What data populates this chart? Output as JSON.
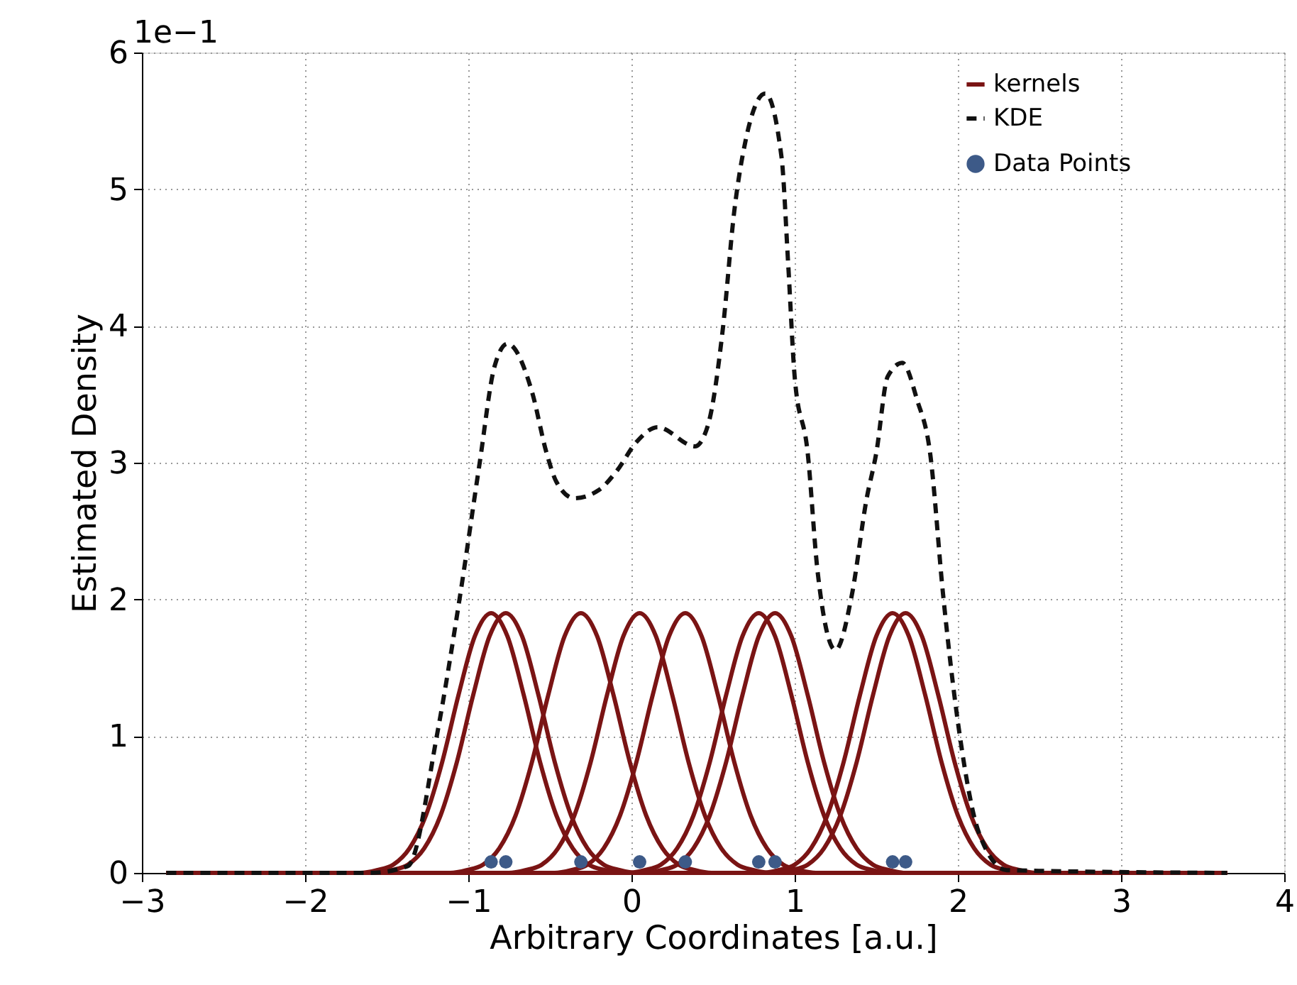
{
  "chart_data": {
    "type": "line",
    "xlabel": "Arbitrary Coordinates [a.u.]",
    "ylabel": "Estimated Density",
    "annotations": [
      "1e−1"
    ],
    "xlim": [
      -3,
      4
    ],
    "xticks": [
      -3,
      -2,
      -1,
      0,
      1,
      2,
      3,
      4
    ],
    "ylim": [
      0,
      6
    ],
    "yticks": [
      0,
      1,
      2,
      3,
      4,
      5,
      6
    ],
    "grid": true,
    "legend": "top right",
    "series": [
      {
        "name": "kernels",
        "color": "#7a1414",
        "line_style": "solid",
        "x": [
          -2.85,
          -1.66,
          -1.56,
          -1.46,
          -1.36,
          -1.26,
          -1.16,
          -1.06,
          -0.96,
          -0.86,
          -0.76,
          -0.66,
          -0.56,
          -0.46,
          -0.36,
          -0.26,
          -0.16,
          -0.06,
          3.65
        ],
        "values": [
          0,
          0,
          0.02,
          0.06,
          0.18,
          0.42,
          0.81,
          1.3,
          1.73,
          1.9,
          1.73,
          1.3,
          0.81,
          0.42,
          0.18,
          0.06,
          0.02,
          0,
          0
        ]
      },
      {
        "color": "#7a1414",
        "line_style": "solid",
        "x": [
          -2.85,
          -1.57,
          -1.47,
          -1.37,
          -1.27,
          -1.17,
          -1.07,
          -0.97,
          -0.87,
          -0.77,
          -0.67,
          -0.57,
          -0.47,
          -0.37,
          -0.27,
          -0.17,
          -0.07,
          0.03,
          3.65
        ],
        "values": [
          0,
          0,
          0.02,
          0.06,
          0.18,
          0.42,
          0.81,
          1.3,
          1.73,
          1.9,
          1.73,
          1.3,
          0.81,
          0.42,
          0.18,
          0.06,
          0.02,
          0,
          0
        ]
      },
      {
        "color": "#7a1414",
        "line_style": "solid",
        "x": [
          -2.85,
          -1.11,
          -1.01,
          -0.91,
          -0.81,
          -0.71,
          -0.61,
          -0.51,
          -0.41,
          -0.31,
          -0.21,
          -0.11,
          -0.01,
          0.09,
          0.19,
          0.29,
          0.39,
          0.49,
          3.65
        ],
        "values": [
          0,
          0,
          0.02,
          0.06,
          0.18,
          0.42,
          0.81,
          1.3,
          1.73,
          1.9,
          1.73,
          1.3,
          0.81,
          0.42,
          0.18,
          0.06,
          0.02,
          0,
          0
        ]
      },
      {
        "color": "#7a1414",
        "line_style": "solid",
        "x": [
          -2.85,
          -0.75,
          -0.65,
          -0.55,
          -0.45,
          -0.35,
          -0.25,
          -0.15,
          -0.05,
          0.05,
          0.15,
          0.25,
          0.35,
          0.45,
          0.55,
          0.65,
          0.75,
          0.85,
          3.65
        ],
        "values": [
          0,
          0,
          0.02,
          0.06,
          0.18,
          0.42,
          0.81,
          1.3,
          1.73,
          1.9,
          1.73,
          1.3,
          0.81,
          0.42,
          0.18,
          0.06,
          0.02,
          0,
          0
        ]
      },
      {
        "color": "#7a1414",
        "line_style": "solid",
        "x": [
          -2.85,
          -0.47,
          -0.37,
          -0.27,
          -0.17,
          -0.07,
          0.03,
          0.13,
          0.23,
          0.33,
          0.43,
          0.53,
          0.63,
          0.73,
          0.83,
          0.93,
          1.03,
          1.13,
          3.65
        ],
        "values": [
          0,
          0,
          0.02,
          0.06,
          0.18,
          0.42,
          0.81,
          1.3,
          1.73,
          1.9,
          1.73,
          1.3,
          0.81,
          0.42,
          0.18,
          0.06,
          0.02,
          0,
          0
        ]
      },
      {
        "color": "#7a1414",
        "line_style": "solid",
        "x": [
          -2.85,
          -0.02,
          0.08,
          0.18,
          0.28,
          0.38,
          0.48,
          0.58,
          0.68,
          0.78,
          0.88,
          0.98,
          1.08,
          1.18,
          1.28,
          1.38,
          1.48,
          1.58,
          3.65
        ],
        "values": [
          0,
          0,
          0.02,
          0.06,
          0.18,
          0.42,
          0.81,
          1.3,
          1.73,
          1.9,
          1.73,
          1.3,
          0.81,
          0.42,
          0.18,
          0.06,
          0.02,
          0,
          0
        ]
      },
      {
        "color": "#7a1414",
        "line_style": "solid",
        "x": [
          -2.85,
          0.08,
          0.18,
          0.28,
          0.38,
          0.48,
          0.58,
          0.68,
          0.78,
          0.88,
          0.98,
          1.08,
          1.18,
          1.28,
          1.38,
          1.48,
          1.58,
          1.68,
          3.65
        ],
        "values": [
          0,
          0,
          0.02,
          0.06,
          0.18,
          0.42,
          0.81,
          1.3,
          1.73,
          1.9,
          1.73,
          1.3,
          0.81,
          0.42,
          0.18,
          0.06,
          0.02,
          0,
          0
        ]
      },
      {
        "color": "#7a1414",
        "line_style": "solid",
        "x": [
          -2.85,
          0.8,
          0.9,
          1.0,
          1.1,
          1.2,
          1.3,
          1.4,
          1.5,
          1.6,
          1.7,
          1.8,
          1.9,
          2.0,
          2.1,
          2.2,
          2.3,
          2.4,
          3.65
        ],
        "values": [
          0,
          0,
          0.02,
          0.06,
          0.18,
          0.42,
          0.81,
          1.3,
          1.73,
          1.9,
          1.73,
          1.3,
          0.81,
          0.42,
          0.18,
          0.06,
          0.02,
          0,
          0
        ]
      },
      {
        "color": "#7a1414",
        "line_style": "solid",
        "x": [
          -2.85,
          0.88,
          0.98,
          1.08,
          1.18,
          1.28,
          1.38,
          1.48,
          1.58,
          1.68,
          1.78,
          1.88,
          1.98,
          2.08,
          2.18,
          2.28,
          2.38,
          2.48,
          3.65
        ],
        "values": [
          0,
          0,
          0.02,
          0.06,
          0.18,
          0.42,
          0.81,
          1.3,
          1.73,
          1.9,
          1.73,
          1.3,
          0.81,
          0.42,
          0.18,
          0.06,
          0.02,
          0,
          0
        ]
      },
      {
        "name": "KDE",
        "color": "#111111",
        "line_style": "dashed",
        "x": [
          -2.85,
          -1.6,
          -1.37,
          -1.19,
          -1.05,
          -0.93,
          -0.84,
          -0.76,
          -0.61,
          -0.52,
          -0.46,
          -0.35,
          -0.2,
          -0.09,
          0.03,
          0.16,
          0.39,
          0.47,
          0.56,
          0.63,
          0.7,
          0.82,
          0.92,
          0.96,
          1.0,
          1.08,
          1.14,
          1.25,
          1.35,
          1.44,
          1.5,
          1.57,
          1.66,
          1.75,
          1.83,
          1.91,
          2.01,
          2.13,
          2.3,
          3.65
        ],
        "values": [
          0,
          0,
          0.05,
          1.02,
          2.03,
          3.0,
          3.7,
          3.87,
          3.52,
          3.07,
          2.86,
          2.74,
          2.8,
          2.94,
          3.15,
          3.26,
          3.12,
          3.28,
          3.98,
          4.84,
          5.36,
          5.7,
          5.23,
          4.46,
          3.63,
          3.07,
          2.21,
          1.63,
          2.03,
          2.73,
          3.07,
          3.63,
          3.73,
          3.46,
          3.07,
          2.03,
          1.02,
          0.29,
          0.02,
          0
        ]
      },
      {
        "name": "Data Points",
        "type": "scatter",
        "marker": "circle",
        "color": "#3d5a88",
        "x": [
          -0.86,
          -0.77,
          -0.31,
          0.05,
          0.33,
          0.78,
          0.88,
          1.6,
          1.68
        ],
        "values": [
          0.08,
          0.08,
          0.08,
          0.08,
          0.08,
          0.08,
          0.08,
          0.08,
          0.08
        ]
      }
    ]
  }
}
